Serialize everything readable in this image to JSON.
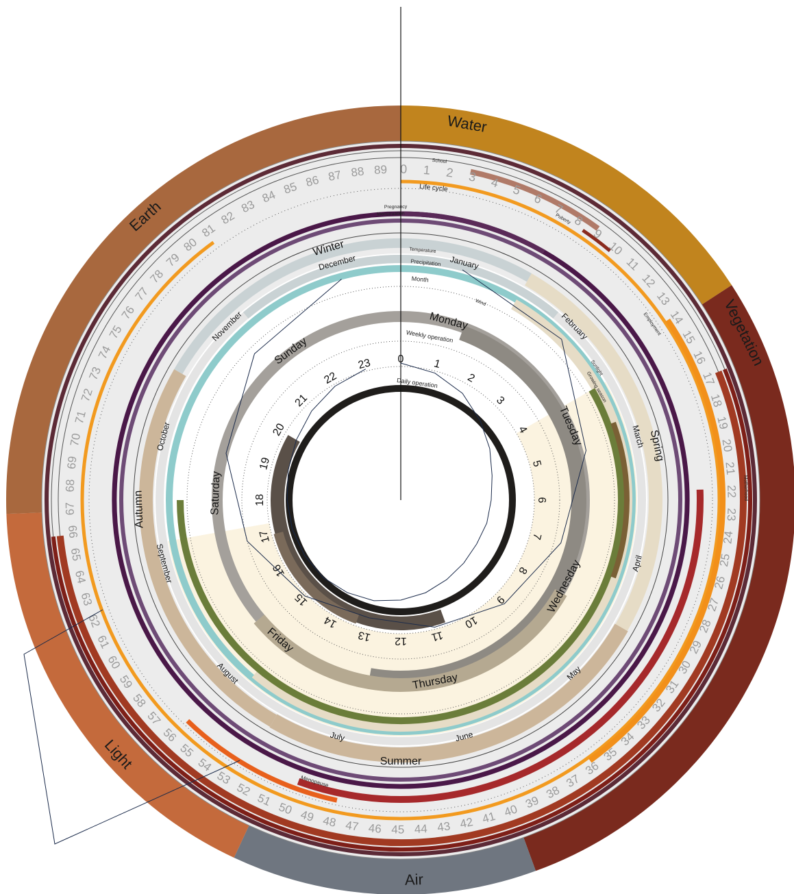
{
  "elements": [
    {
      "name": "Water",
      "color": "#c1841e",
      "from_deg": 0,
      "to_deg": 57
    },
    {
      "name": "Vegetation",
      "color": "#7a2a1e",
      "from_deg": 57,
      "to_deg": 160
    },
    {
      "name": "Air",
      "color": "#6f7680",
      "from_deg": 160,
      "to_deg": 205
    },
    {
      "name": "Light",
      "color": "#c46a3c",
      "from_deg": 205,
      "to_deg": 268
    },
    {
      "name": "Earth",
      "color": "#a8683e",
      "from_deg": 268,
      "to_deg": 360
    }
  ],
  "life_cycle": {
    "label": "Life cycle",
    "ages": [
      "0",
      "1",
      "2",
      "3",
      "4",
      "5",
      "6",
      "7",
      "8",
      "9",
      "10",
      "11",
      "12",
      "13",
      "14",
      "15",
      "16",
      "17",
      "18",
      "19",
      "20",
      "21",
      "22",
      "23",
      "24",
      "25",
      "26",
      "27",
      "28",
      "29",
      "30",
      "31",
      "32",
      "33",
      "34",
      "35",
      "36",
      "37",
      "38",
      "39",
      "40",
      "41",
      "42",
      "43",
      "44",
      "45",
      "46",
      "47",
      "48",
      "49",
      "50",
      "51",
      "52",
      "53",
      "54",
      "55",
      "56",
      "57",
      "58",
      "59",
      "60",
      "61",
      "62",
      "63",
      "64",
      "65",
      "66",
      "67",
      "68",
      "69",
      "70",
      "71",
      "72",
      "73",
      "74",
      "75",
      "76",
      "77",
      "78",
      "79",
      "80",
      "81",
      "82",
      "83",
      "84",
      "85",
      "86",
      "87",
      "88",
      "89"
    ],
    "bars": [
      {
        "label": "School",
        "color": "#b07a68",
        "from_age": 3,
        "to_age": 9,
        "radius": 326
      },
      {
        "label": "Puberty",
        "color": "#8a2a1e",
        "from_age": 8,
        "to_age": 10,
        "radius": 315
      },
      {
        "label": "Employment",
        "color": "#a13a22",
        "from_age": 17,
        "to_age": 66,
        "radius": 334
      },
      {
        "label": "Motherhood",
        "color": "#c8452d",
        "from_age": 23,
        "to_age": 51,
        "radius": 252
      },
      {
        "label": "Menopause",
        "color": "#e8601c",
        "from_age": 48,
        "to_age": 56,
        "radius": 262
      }
    ],
    "orange_color": "#f29a1f",
    "dark_wine": "#5c2a36"
  },
  "female": {
    "pregnancy_label": "Pregnancy",
    "menstruation_label": "Menstruation",
    "color_dark": "#4a1848",
    "color_mid": "#6e4b76"
  },
  "seasons": [
    {
      "name": "Winter",
      "from_deg": 300,
      "to_deg": 30
    },
    {
      "name": "Spring",
      "from_deg": 30,
      "to_deg": 120
    },
    {
      "name": "Summer",
      "from_deg": 120,
      "to_deg": 210
    },
    {
      "name": "Autumn",
      "from_deg": 210,
      "to_deg": 300
    }
  ],
  "months": [
    "January",
    "February",
    "March",
    "April",
    "May",
    "June",
    "July",
    "August",
    "September",
    "October",
    "November",
    "December"
  ],
  "ring_labels": {
    "temperature": "Temperature",
    "precipitation": "Precipitation",
    "month": "Month",
    "wind": "Wind",
    "sunlight": "Sunlight",
    "growing_season": "Growing season",
    "weekly": "Weekly operation",
    "daily": "Daily operation"
  },
  "weekdays": [
    "Monday",
    "Tuesday",
    "Wednesday",
    "Thursday",
    "Friday",
    "Saturday",
    "Sunday"
  ],
  "hours": [
    "0",
    "1",
    "2",
    "3",
    "4",
    "5",
    "6",
    "7",
    "8",
    "9",
    "10",
    "11",
    "12",
    "13",
    "14",
    "15",
    "16",
    "17",
    "18",
    "19",
    "20",
    "21",
    "22",
    "23"
  ],
  "colors": {
    "grey_band": "#ececec",
    "temperature": "#c9d2d4",
    "precipitation": "#8ecbcb",
    "sunlight": "#e6dcc6",
    "growing": "#6b7d3a",
    "season_tan": "#ccb69a",
    "cream": "#fbf3e0",
    "weekday": "#a4a09b",
    "daily": "#1f1d1b",
    "brown": "#7a6a50",
    "line": "#1a2a4a"
  },
  "monthly_curve": [
    12,
    28,
    80,
    118,
    146,
    168,
    182,
    162,
    128,
    96,
    58,
    26
  ],
  "weekly_curve": [
    0,
    20,
    60,
    110,
    150,
    190,
    250
  ],
  "daily_curve": [
    0,
    8,
    20,
    36,
    50,
    62,
    68,
    70,
    72,
    70,
    66,
    60,
    54,
    48,
    44,
    40,
    38,
    36,
    34,
    30,
    24,
    16,
    8,
    2
  ]
}
